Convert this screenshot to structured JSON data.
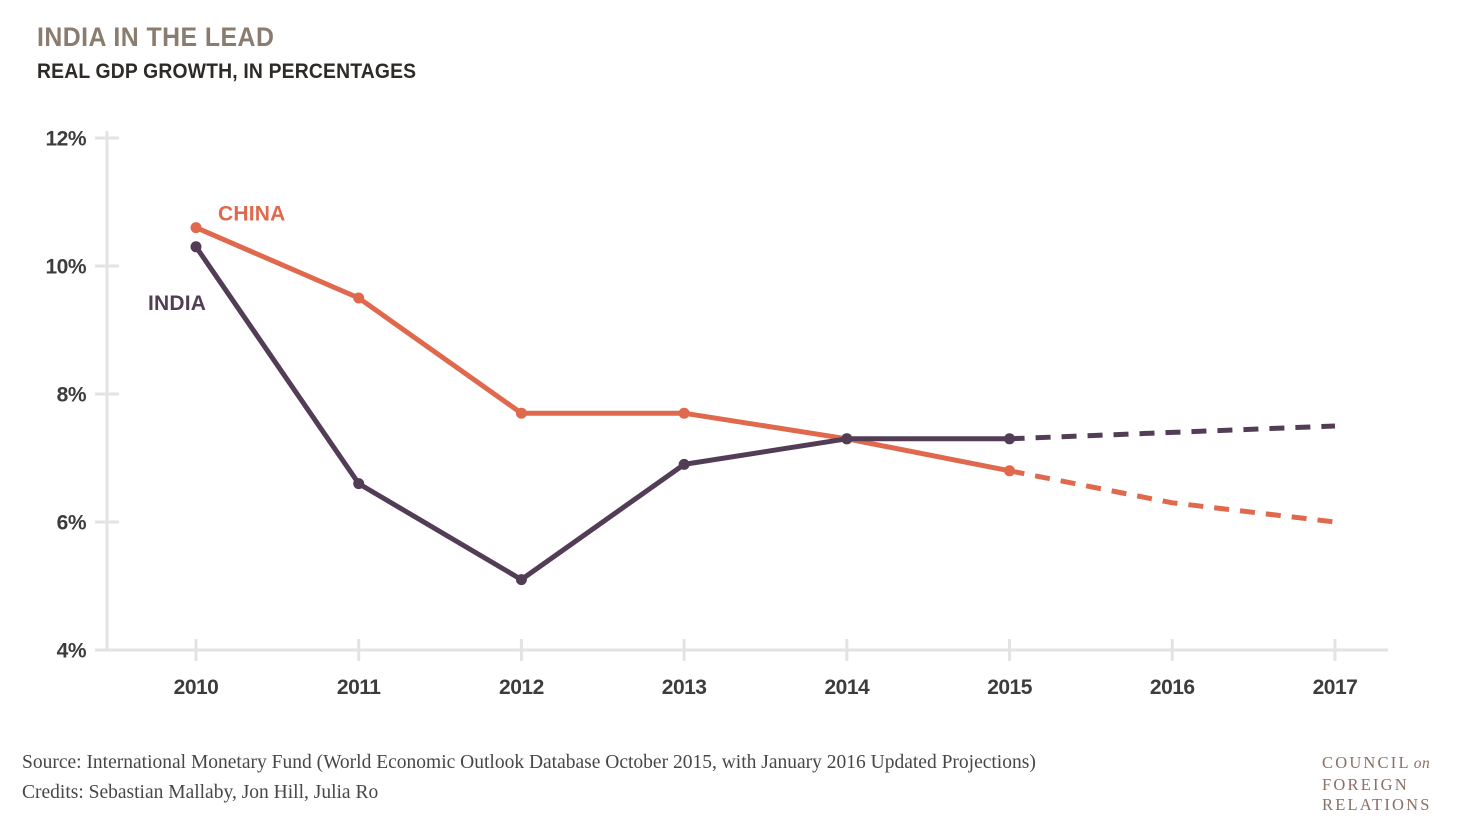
{
  "header": {
    "title": "INDIA IN THE LEAD",
    "subtitle": "REAL GDP GROWTH, IN PERCENTAGES"
  },
  "chart_data": {
    "type": "line",
    "title": "INDIA IN THE LEAD",
    "subtitle": "REAL GDP GROWTH, IN PERCENTAGES",
    "x": [
      "2010",
      "2011",
      "2012",
      "2013",
      "2014",
      "2015",
      "2016",
      "2017"
    ],
    "series": [
      {
        "name": "CHINA",
        "color": "#e0694d",
        "values": [
          10.6,
          9.5,
          7.7,
          7.7,
          7.3,
          6.8,
          6.3,
          6.0
        ],
        "projection_from_index": 5
      },
      {
        "name": "INDIA",
        "color": "#533d56",
        "values": [
          10.3,
          6.6,
          5.1,
          6.9,
          7.3,
          7.3,
          7.4,
          7.5
        ],
        "projection_from_index": 5
      }
    ],
    "ylim": [
      4,
      12
    ],
    "yticks": [
      12,
      10,
      8,
      6,
      4
    ],
    "ytick_labels": [
      "12%",
      "10%",
      "8%",
      "6%",
      "4%"
    ],
    "xlabel": "",
    "ylabel": "",
    "grid": false,
    "legend": "inline-series-labels",
    "projection_style": "dashed",
    "axis_color": "#e3e3e3",
    "tick_label_color": "#3c3c3c"
  },
  "footer": {
    "source": "Source: International Monetary Fund (World Economic Outlook Database October 2015, with January 2016 Updated Projections)",
    "credits": "Credits: Sebastian Mallaby, Jon Hill, Julia Ro"
  },
  "logo": {
    "line1_main": "COUNCIL",
    "line1_italic": "on",
    "line2": "FOREIGN",
    "line3": "RELATIONS"
  },
  "colors": {
    "title": "#8a7c6f",
    "subtitle": "#2d2a28",
    "axis": "#e3e3e3",
    "tick_label": "#3c3c3c",
    "china": "#e0694d",
    "india": "#533d56",
    "footer_text": "#474747",
    "logo": "#8a7065"
  }
}
